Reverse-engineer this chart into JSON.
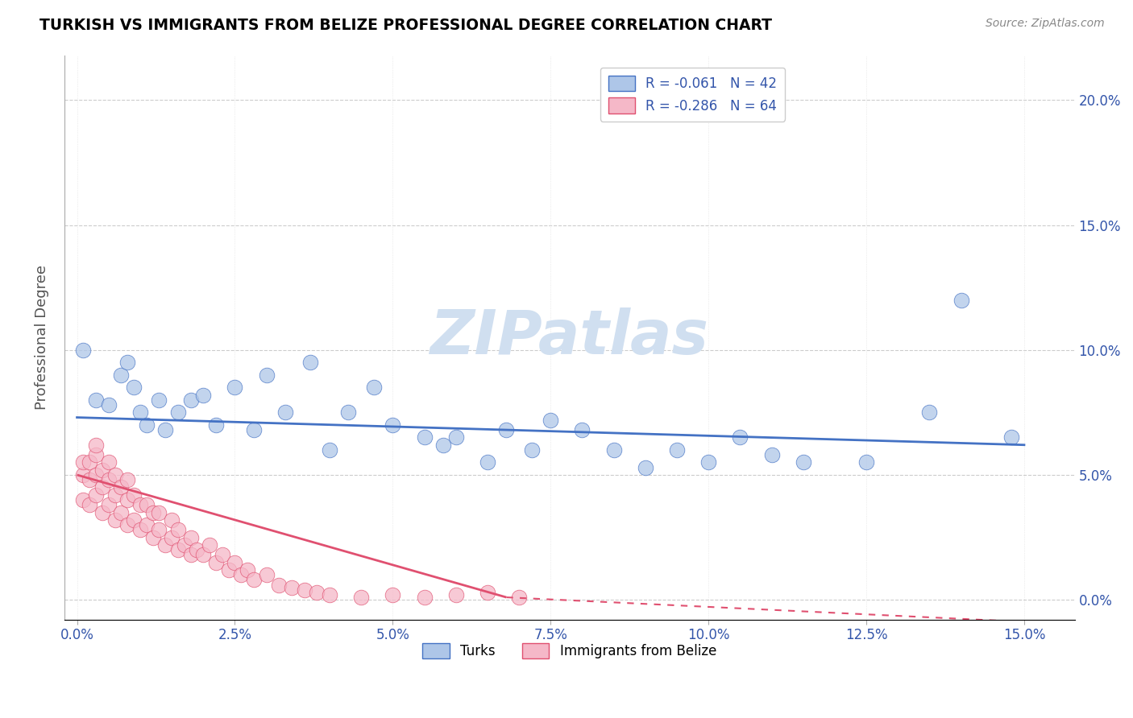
{
  "title": "TURKISH VS IMMIGRANTS FROM BELIZE PROFESSIONAL DEGREE CORRELATION CHART",
  "source": "Source: ZipAtlas.com",
  "xlabel_ticks": [
    0.0,
    0.025,
    0.05,
    0.075,
    0.1,
    0.125,
    0.15
  ],
  "ylabel_ticks": [
    0.0,
    0.05,
    0.1,
    0.15,
    0.2
  ],
  "xlim": [
    -0.002,
    0.158
  ],
  "ylim": [
    -0.008,
    0.218
  ],
  "ylabel": "Professional Degree",
  "turks_R": -0.061,
  "turks_N": 42,
  "belize_R": -0.286,
  "belize_N": 64,
  "turks_color": "#aec6e8",
  "turks_line_color": "#4472c4",
  "belize_color": "#f5b8c8",
  "belize_line_color": "#e05070",
  "watermark_color": "#d0dff0",
  "turks_x": [
    0.001,
    0.003,
    0.005,
    0.007,
    0.008,
    0.009,
    0.01,
    0.011,
    0.013,
    0.014,
    0.016,
    0.018,
    0.02,
    0.022,
    0.025,
    0.028,
    0.03,
    0.033,
    0.037,
    0.04,
    0.043,
    0.047,
    0.05,
    0.055,
    0.058,
    0.06,
    0.065,
    0.068,
    0.072,
    0.075,
    0.08,
    0.085,
    0.09,
    0.095,
    0.1,
    0.105,
    0.11,
    0.115,
    0.125,
    0.135,
    0.14,
    0.148
  ],
  "turks_y": [
    0.1,
    0.08,
    0.078,
    0.09,
    0.095,
    0.085,
    0.075,
    0.07,
    0.08,
    0.068,
    0.075,
    0.08,
    0.082,
    0.07,
    0.085,
    0.068,
    0.09,
    0.075,
    0.095,
    0.06,
    0.075,
    0.085,
    0.07,
    0.065,
    0.062,
    0.065,
    0.055,
    0.068,
    0.06,
    0.072,
    0.068,
    0.06,
    0.053,
    0.06,
    0.055,
    0.065,
    0.058,
    0.055,
    0.055,
    0.075,
    0.12,
    0.065
  ],
  "belize_x": [
    0.001,
    0.001,
    0.001,
    0.002,
    0.002,
    0.002,
    0.003,
    0.003,
    0.003,
    0.003,
    0.004,
    0.004,
    0.004,
    0.005,
    0.005,
    0.005,
    0.006,
    0.006,
    0.006,
    0.007,
    0.007,
    0.008,
    0.008,
    0.008,
    0.009,
    0.009,
    0.01,
    0.01,
    0.011,
    0.011,
    0.012,
    0.012,
    0.013,
    0.013,
    0.014,
    0.015,
    0.015,
    0.016,
    0.016,
    0.017,
    0.018,
    0.018,
    0.019,
    0.02,
    0.021,
    0.022,
    0.023,
    0.024,
    0.025,
    0.026,
    0.027,
    0.028,
    0.03,
    0.032,
    0.034,
    0.036,
    0.038,
    0.04,
    0.045,
    0.05,
    0.055,
    0.06,
    0.065,
    0.07
  ],
  "belize_y": [
    0.04,
    0.05,
    0.055,
    0.038,
    0.048,
    0.055,
    0.042,
    0.05,
    0.058,
    0.062,
    0.035,
    0.045,
    0.052,
    0.038,
    0.048,
    0.055,
    0.032,
    0.042,
    0.05,
    0.035,
    0.045,
    0.03,
    0.04,
    0.048,
    0.032,
    0.042,
    0.028,
    0.038,
    0.03,
    0.038,
    0.025,
    0.035,
    0.028,
    0.035,
    0.022,
    0.025,
    0.032,
    0.02,
    0.028,
    0.022,
    0.018,
    0.025,
    0.02,
    0.018,
    0.022,
    0.015,
    0.018,
    0.012,
    0.015,
    0.01,
    0.012,
    0.008,
    0.01,
    0.006,
    0.005,
    0.004,
    0.003,
    0.002,
    0.001,
    0.002,
    0.001,
    0.002,
    0.003,
    0.001
  ],
  "turks_trendline_x": [
    0.0,
    0.15
  ],
  "turks_trendline_y": [
    0.073,
    0.062
  ],
  "belize_trendline_x": [
    0.0,
    0.068
  ],
  "belize_trendline_y": [
    0.05,
    0.001
  ]
}
